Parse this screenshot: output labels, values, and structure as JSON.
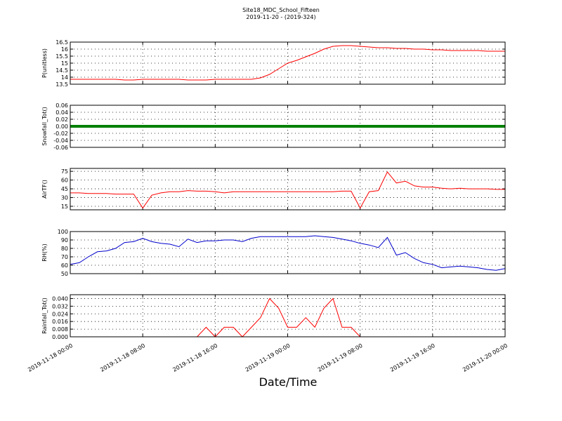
{
  "chart_data": [
    {
      "type": "line",
      "title": "Site18_MDC_School_Fifteen",
      "subtitle": "2019-11-20 - (2019-324)",
      "ylabel": "P(unitless)",
      "color": "#ff0000",
      "ylim": [
        13.5,
        16.5
      ],
      "yticks": [
        13.5,
        14.0,
        14.5,
        15.0,
        15.5,
        16.0,
        16.5
      ],
      "grid": true,
      "values": [
        13.85,
        13.85,
        13.85,
        13.85,
        13.85,
        13.85,
        13.8,
        13.8,
        13.85,
        13.85,
        13.85,
        13.85,
        13.85,
        13.8,
        13.8,
        13.8,
        13.85,
        13.85,
        13.85,
        13.85,
        13.85,
        13.95,
        14.2,
        14.6,
        15.0,
        15.2,
        15.45,
        15.7,
        16.0,
        16.2,
        16.25,
        16.25,
        16.2,
        16.15,
        16.1,
        16.1,
        16.05,
        16.05,
        16.0,
        16.0,
        15.95,
        15.95,
        15.9,
        15.9,
        15.9,
        15.9,
        15.85,
        15.85,
        15.85
      ]
    },
    {
      "type": "line",
      "ylabel": "Snowfall_Tot()",
      "color": "#008000",
      "ylim": [
        -0.06,
        0.06
      ],
      "yticks": [
        -0.06,
        -0.04,
        -0.02,
        {
          "value": 0,
          "label": "0.00"
        },
        0.02,
        0.04,
        0.06
      ],
      "grid": true,
      "values": [
        0,
        0,
        0,
        0,
        0,
        0,
        0,
        0,
        0,
        0,
        0,
        0,
        0,
        0,
        0,
        0,
        0,
        0,
        0,
        0,
        0,
        0,
        0,
        0,
        0,
        0,
        0,
        0,
        0,
        0,
        0,
        0,
        0,
        0,
        0,
        0,
        0,
        0,
        0,
        0,
        0,
        0,
        0,
        0,
        0,
        0,
        0,
        0,
        0
      ]
    },
    {
      "type": "line",
      "ylabel": "AirTF()",
      "color": "#ff0000",
      "ylim": [
        9,
        80
      ],
      "yticks": [
        15,
        30,
        45,
        60,
        75
      ],
      "grid": true,
      "values": [
        38,
        38,
        37,
        37,
        37,
        36,
        36,
        36,
        12,
        34,
        38,
        40,
        40,
        42,
        41,
        41,
        40,
        38,
        40,
        40,
        40,
        40,
        40,
        40,
        40,
        40,
        40,
        40,
        40,
        40,
        41,
        41,
        12,
        40,
        42,
        74,
        55,
        58,
        50,
        48,
        48,
        46,
        45,
        46,
        45,
        45,
        45,
        44,
        44
      ]
    },
    {
      "type": "line",
      "ylabel": "RH(%)",
      "color": "#0000cc",
      "ylim": [
        50,
        100
      ],
      "yticks": [
        50,
        60,
        70,
        80,
        90,
        100
      ],
      "grid": true,
      "values": [
        61,
        63,
        70,
        76,
        77,
        80,
        87,
        88,
        92,
        88,
        86,
        85,
        82,
        91,
        87,
        89,
        89,
        90,
        90,
        88,
        92,
        94,
        94,
        94,
        94,
        94,
        94,
        95,
        94,
        93,
        91,
        89,
        86,
        84,
        81,
        93,
        72,
        75,
        68,
        63,
        61,
        57,
        58,
        59,
        58,
        57,
        55,
        54,
        56
      ]
    },
    {
      "type": "line",
      "ylabel": "Rainfall_Tot()",
      "xlabel": "Date/Time",
      "color": "#ff0000",
      "ylim": [
        0,
        0.044
      ],
      "yticks": [
        {
          "value": 0,
          "label": "0.000"
        },
        0.008,
        0.016,
        0.024,
        0.032,
        {
          "value": 0.04,
          "label": "0.040"
        }
      ],
      "grid": true,
      "values": [
        0,
        0,
        0,
        0,
        0,
        0,
        0,
        0,
        0,
        0,
        0,
        0,
        0,
        0,
        0,
        0.01,
        0,
        0.01,
        0.01,
        0,
        0.01,
        0.02,
        0.04,
        0.03,
        0.01,
        0.01,
        0.02,
        0.01,
        0.03,
        0.04,
        0.01,
        0.01,
        0,
        0,
        0,
        0,
        0,
        0,
        0,
        0,
        0,
        0,
        0,
        0,
        0,
        0,
        0,
        0,
        0
      ],
      "xlim": [
        "2019-11-18 00:00",
        "2019-11-20 00:00"
      ],
      "xticks": [
        "2019-11-18 00:00",
        "2019-11-18 08:00",
        "2019-11-18 16:00",
        "2019-11-19 00:00",
        "2019-11-19 08:00",
        "2019-11-19 16:00",
        "2019-11-20 00:00"
      ],
      "x": [
        "2019-11-18 00:00",
        "2019-11-18 01:00",
        "2019-11-18 02:00",
        "2019-11-18 03:00",
        "2019-11-18 04:00",
        "2019-11-18 05:00",
        "2019-11-18 06:00",
        "2019-11-18 07:00",
        "2019-11-18 08:00",
        "2019-11-18 09:00",
        "2019-11-18 10:00",
        "2019-11-18 11:00",
        "2019-11-18 12:00",
        "2019-11-18 13:00",
        "2019-11-18 14:00",
        "2019-11-18 15:00",
        "2019-11-18 16:00",
        "2019-11-18 17:00",
        "2019-11-18 18:00",
        "2019-11-18 19:00",
        "2019-11-18 20:00",
        "2019-11-18 21:00",
        "2019-11-18 22:00",
        "2019-11-18 23:00",
        "2019-11-19 00:00",
        "2019-11-19 01:00",
        "2019-11-19 02:00",
        "2019-11-19 03:00",
        "2019-11-19 04:00",
        "2019-11-19 05:00",
        "2019-11-19 06:00",
        "2019-11-19 07:00",
        "2019-11-19 08:00",
        "2019-11-19 09:00",
        "2019-11-19 10:00",
        "2019-11-19 11:00",
        "2019-11-19 12:00",
        "2019-11-19 13:00",
        "2019-11-19 14:00",
        "2019-11-19 15:00",
        "2019-11-19 16:00",
        "2019-11-19 17:00",
        "2019-11-19 18:00",
        "2019-11-19 19:00",
        "2019-11-19 20:00",
        "2019-11-19 21:00",
        "2019-11-19 22:00",
        "2019-11-19 23:00",
        "2019-11-20 00:00"
      ]
    }
  ]
}
